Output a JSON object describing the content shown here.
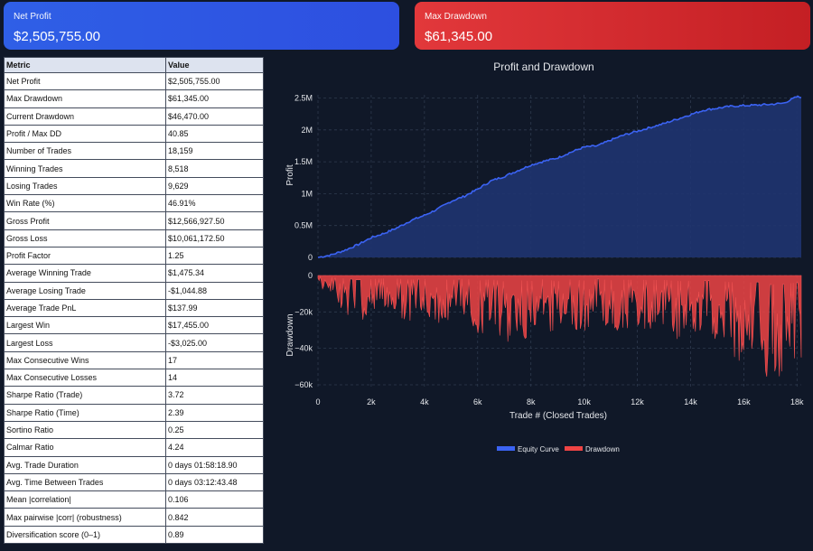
{
  "cards": {
    "net_profit": {
      "title": "Net Profit",
      "value": "$2,505,755.00"
    },
    "max_drawdown": {
      "title": "Max Drawdown",
      "value": "$61,345.00"
    }
  },
  "colors": {
    "background": "#101828",
    "net_profit_card": "#2f5fe6",
    "max_drawdown_card": "#d2292d",
    "equity_line": "#3b63f3",
    "equity_fill": "#1f3470",
    "drawdown_fill": "#ef4444"
  },
  "table": {
    "headers": [
      "Metric",
      "Value"
    ],
    "rows": [
      [
        "Net Profit",
        "$2,505,755.00"
      ],
      [
        "Max Drawdown",
        "$61,345.00"
      ],
      [
        "Current Drawdown",
        "$46,470.00"
      ],
      [
        "Profit / Max DD",
        "40.85"
      ],
      [
        "Number of Trades",
        "18,159"
      ],
      [
        "Winning Trades",
        "8,518"
      ],
      [
        "Losing Trades",
        "9,629"
      ],
      [
        "Win Rate (%)",
        "46.91%"
      ],
      [
        "Gross Profit",
        "$12,566,927.50"
      ],
      [
        "Gross Loss",
        "$10,061,172.50"
      ],
      [
        "Profit Factor",
        "1.25"
      ],
      [
        "Average Winning Trade",
        "$1,475.34"
      ],
      [
        "Average Losing Trade",
        "-$1,044.88"
      ],
      [
        "Average Trade PnL",
        "$137.99"
      ],
      [
        "Largest Win",
        "$17,455.00"
      ],
      [
        "Largest Loss",
        "-$3,025.00"
      ],
      [
        "Max Consecutive Wins",
        "17"
      ],
      [
        "Max Consecutive Losses",
        "14"
      ],
      [
        "Sharpe Ratio (Trade)",
        "3.72"
      ],
      [
        "Sharpe Ratio (Time)",
        "2.39"
      ],
      [
        "Sortino Ratio",
        "0.25"
      ],
      [
        "Calmar Ratio",
        "4.24"
      ],
      [
        "Avg. Trade Duration",
        "0 days 01:58:18.90"
      ],
      [
        "Avg. Time Between Trades",
        "0 days 03:12:43.48"
      ],
      [
        "Mean |correlation|",
        "0.106"
      ],
      [
        "Max pairwise |corr| (robustness)",
        "0.842"
      ],
      [
        "Diversification score (0–1)",
        "0.89"
      ]
    ]
  },
  "chart_data": {
    "type": "area",
    "title": "Profit and Drawdown",
    "xlabel": "Trade # (Closed Trades)",
    "xlim": [
      0,
      18159
    ],
    "x_ticks": [
      0,
      2000,
      4000,
      6000,
      8000,
      10000,
      12000,
      14000,
      16000,
      18000
    ],
    "x_tick_labels": [
      "0",
      "2k",
      "4k",
      "6k",
      "8k",
      "10k",
      "12k",
      "14k",
      "16k",
      "18k"
    ],
    "panels": [
      {
        "name": "profit",
        "ylabel": "Profit",
        "ylim": [
          0,
          2550000
        ],
        "y_ticks": [
          0,
          500000,
          1000000,
          1500000,
          2000000,
          2500000
        ],
        "y_tick_labels": [
          "0",
          "0.5M",
          "1M",
          "1.5M",
          "2M",
          "2.5M"
        ]
      },
      {
        "name": "drawdown",
        "ylabel": "Drawdown",
        "ylim": [
          -62000,
          0
        ],
        "y_ticks": [
          0,
          -20000,
          -40000,
          -60000
        ],
        "y_tick_labels": [
          "0",
          "−20k",
          "−40k",
          "−60k"
        ]
      }
    ],
    "series": [
      {
        "name": "Equity Curve",
        "panel": "profit",
        "x": [
          0,
          500,
          1000,
          1500,
          2000,
          2500,
          3000,
          3500,
          4000,
          4500,
          5000,
          5500,
          6000,
          6500,
          7000,
          7500,
          8000,
          8500,
          9000,
          9500,
          10000,
          10500,
          11000,
          11500,
          12000,
          12500,
          13000,
          13500,
          14000,
          14500,
          15000,
          15500,
          16000,
          16500,
          17000,
          17500,
          18000,
          18159
        ],
        "y": [
          0,
          40000,
          110000,
          200000,
          310000,
          380000,
          470000,
          580000,
          660000,
          760000,
          880000,
          960000,
          1070000,
          1200000,
          1270000,
          1360000,
          1450000,
          1510000,
          1560000,
          1650000,
          1730000,
          1750000,
          1840000,
          1920000,
          1980000,
          2040000,
          2100000,
          2170000,
          2240000,
          2310000,
          2340000,
          2370000,
          2380000,
          2390000,
          2400000,
          2420000,
          2520000,
          2505755
        ]
      },
      {
        "name": "Drawdown",
        "panel": "drawdown",
        "x": [
          0,
          500,
          1000,
          1500,
          2000,
          2500,
          3000,
          3500,
          4000,
          4500,
          5000,
          5500,
          6000,
          6500,
          7000,
          7500,
          8000,
          8500,
          9000,
          9500,
          10000,
          10500,
          11000,
          11500,
          12000,
          12500,
          13000,
          13500,
          14000,
          14500,
          15000,
          15500,
          16000,
          16500,
          17000,
          17500,
          18000,
          18159
        ],
        "y": [
          -5000,
          -12000,
          -20000,
          -30000,
          -25000,
          -20000,
          -22000,
          -28000,
          -24000,
          -26000,
          -30000,
          -22000,
          -35000,
          -27000,
          -40000,
          -32000,
          -38000,
          -25000,
          -40000,
          -27000,
          -34000,
          -23000,
          -33000,
          -30000,
          -29000,
          -32000,
          -31000,
          -38000,
          -36000,
          -34000,
          -37000,
          -45000,
          -52000,
          -44000,
          -61345,
          -58000,
          -48000,
          -46470
        ]
      }
    ],
    "legend": {
      "position": "bottom",
      "entries": [
        "Equity Curve",
        "Drawdown"
      ]
    },
    "grid": true
  }
}
